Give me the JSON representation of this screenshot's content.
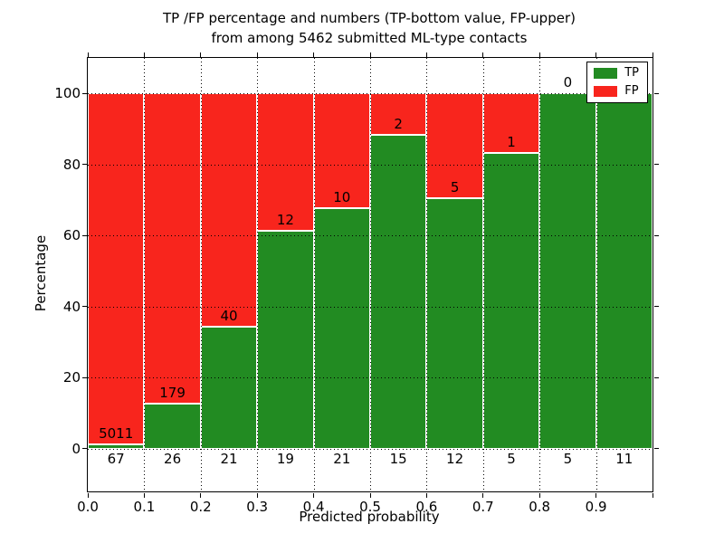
{
  "title": {
    "line1": "TP /FP percentage and numbers (TP-bottom value, FP-upper)",
    "line2": "from among 5462 submitted ML-type contacts"
  },
  "axes": {
    "x_label": "Predicted probability",
    "y_label": "Percentage",
    "x_tick_labels": [
      "0.0",
      "0.1",
      "0.2",
      "0.3",
      "0.4",
      "0.5",
      "0.6",
      "0.7",
      "0.8",
      "0.9"
    ],
    "y_tick_labels": [
      "0",
      "20",
      "40",
      "60",
      "80",
      "100"
    ],
    "y_tick_values": [
      0,
      20,
      40,
      60,
      80,
      100
    ]
  },
  "legend": {
    "items": [
      {
        "label": "TP",
        "color": "#228b22"
      },
      {
        "label": "FP",
        "color": "#f8251d"
      }
    ]
  },
  "chart_data": {
    "type": "bar",
    "stacked": true,
    "normalized_to_percent": true,
    "title": "TP /FP percentage and numbers (TP-bottom value, FP-upper) from among 5462 submitted ML-type contacts",
    "xlabel": "Predicted probability",
    "ylabel": "Percentage",
    "total_contacts": 5462,
    "bin_width": 0.1,
    "bin_starts": [
      0.0,
      0.1,
      0.2,
      0.3,
      0.4,
      0.5,
      0.6,
      0.7,
      0.8,
      0.9
    ],
    "categories": [
      "0.0-0.1",
      "0.1-0.2",
      "0.2-0.3",
      "0.3-0.4",
      "0.4-0.5",
      "0.5-0.6",
      "0.6-0.7",
      "0.7-0.8",
      "0.8-0.9",
      "0.9-1.0"
    ],
    "series": [
      {
        "name": "TP",
        "color": "#228b22",
        "counts": [
          67,
          26,
          21,
          19,
          21,
          15,
          12,
          5,
          5,
          11
        ]
      },
      {
        "name": "FP",
        "color": "#f8251d",
        "counts": [
          5011,
          179,
          40,
          12,
          10,
          2,
          5,
          1,
          0,
          0
        ]
      }
    ],
    "tp_percent": [
      1.32,
      12.68,
      34.43,
      61.29,
      67.74,
      88.24,
      70.59,
      83.33,
      100.0,
      100.0
    ],
    "xlim": [
      0.0,
      1.0
    ],
    "ylim": [
      -12,
      110
    ],
    "grid": "dotted",
    "legend_position": "upper right"
  }
}
